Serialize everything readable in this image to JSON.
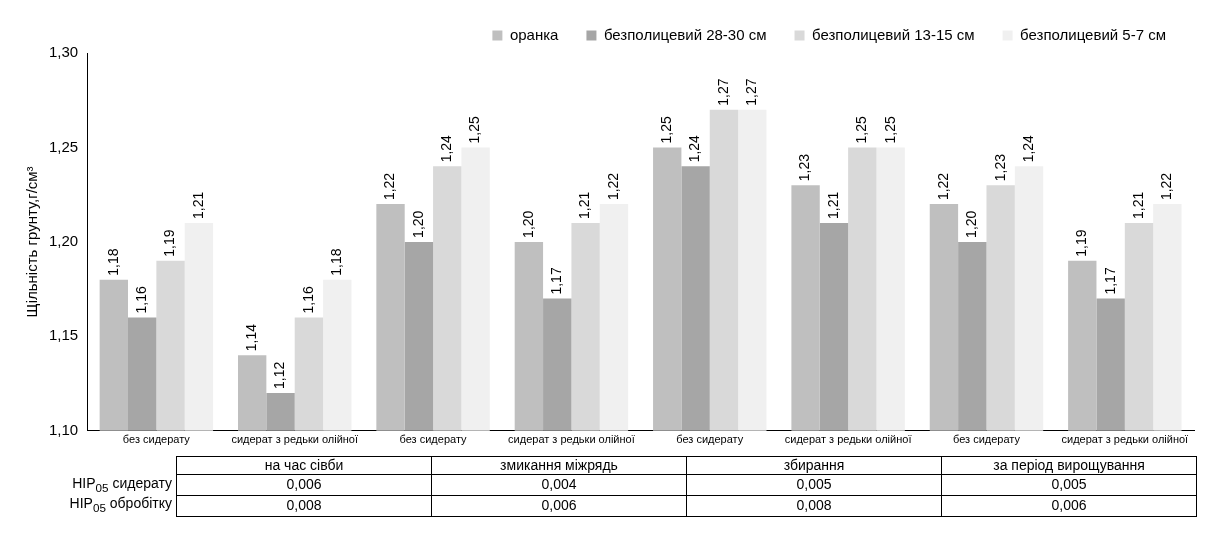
{
  "chart_data": {
    "type": "bar",
    "ylabel": "Щільність грунту,г/см³",
    "categories": [
      "без сидерату",
      "сидерат з редьки олійної",
      "без сидерату",
      "сидерат з редьки олійної",
      "без сидерату",
      "сидерат з редьки олійної",
      "без сидерату",
      "сидерат з редьки олійної"
    ],
    "series": [
      {
        "name": "оранка",
        "color": "#bfbfbf",
        "values": [
          1.18,
          1.14,
          1.22,
          1.2,
          1.25,
          1.23,
          1.22,
          1.19
        ],
        "value_labels": [
          "1,18",
          "1,14",
          "1,22",
          "1,20",
          "1,25",
          "1,23",
          "1,22",
          "1,19"
        ]
      },
      {
        "name": "безполицевий 28-30 см",
        "color": "#a6a6a6",
        "values": [
          1.16,
          1.12,
          1.2,
          1.17,
          1.24,
          1.21,
          1.2,
          1.17
        ],
        "value_labels": [
          "1,16",
          "1,12",
          "1,20",
          "1,17",
          "1,24",
          "1,21",
          "1,20",
          "1,17"
        ]
      },
      {
        "name": "безполицевий 13-15 см",
        "color": "#d9d9d9",
        "values": [
          1.19,
          1.16,
          1.24,
          1.21,
          1.27,
          1.25,
          1.23,
          1.21
        ],
        "value_labels": [
          "1,19",
          "1,16",
          "1,24",
          "1,21",
          "1,27",
          "1,25",
          "1,23",
          "1,21"
        ]
      },
      {
        "name": "безполицевий 5-7 см",
        "color": "#f0f0f0",
        "values": [
          1.21,
          1.18,
          1.25,
          1.22,
          1.27,
          1.25,
          1.24,
          1.22
        ],
        "value_labels": [
          "1,21",
          "1,18",
          "1,25",
          "1,22",
          "1,27",
          "1,25",
          "1,24",
          "1,22"
        ]
      }
    ],
    "ylim": [
      1.1,
      1.3
    ],
    "yticks": [
      {
        "value": 1.1,
        "label": "1,10"
      },
      {
        "value": 1.15,
        "label": "1,15"
      },
      {
        "value": 1.2,
        "label": "1,20"
      },
      {
        "value": 1.25,
        "label": "1,25"
      },
      {
        "value": 1.3,
        "label": "1,30"
      }
    ],
    "grid": false,
    "legend": "top",
    "annotations": [
      "на час сівби",
      "змикання міжрядь",
      "збирання",
      "за період вирощування",
      "HIP$_{05}$ сидерату",
      "0,006",
      "0,004",
      "0,005",
      "0,005",
      "HIP$_{05}$ обробітку",
      "0,008",
      "0,006",
      "0,008",
      "0,006"
    ]
  }
}
